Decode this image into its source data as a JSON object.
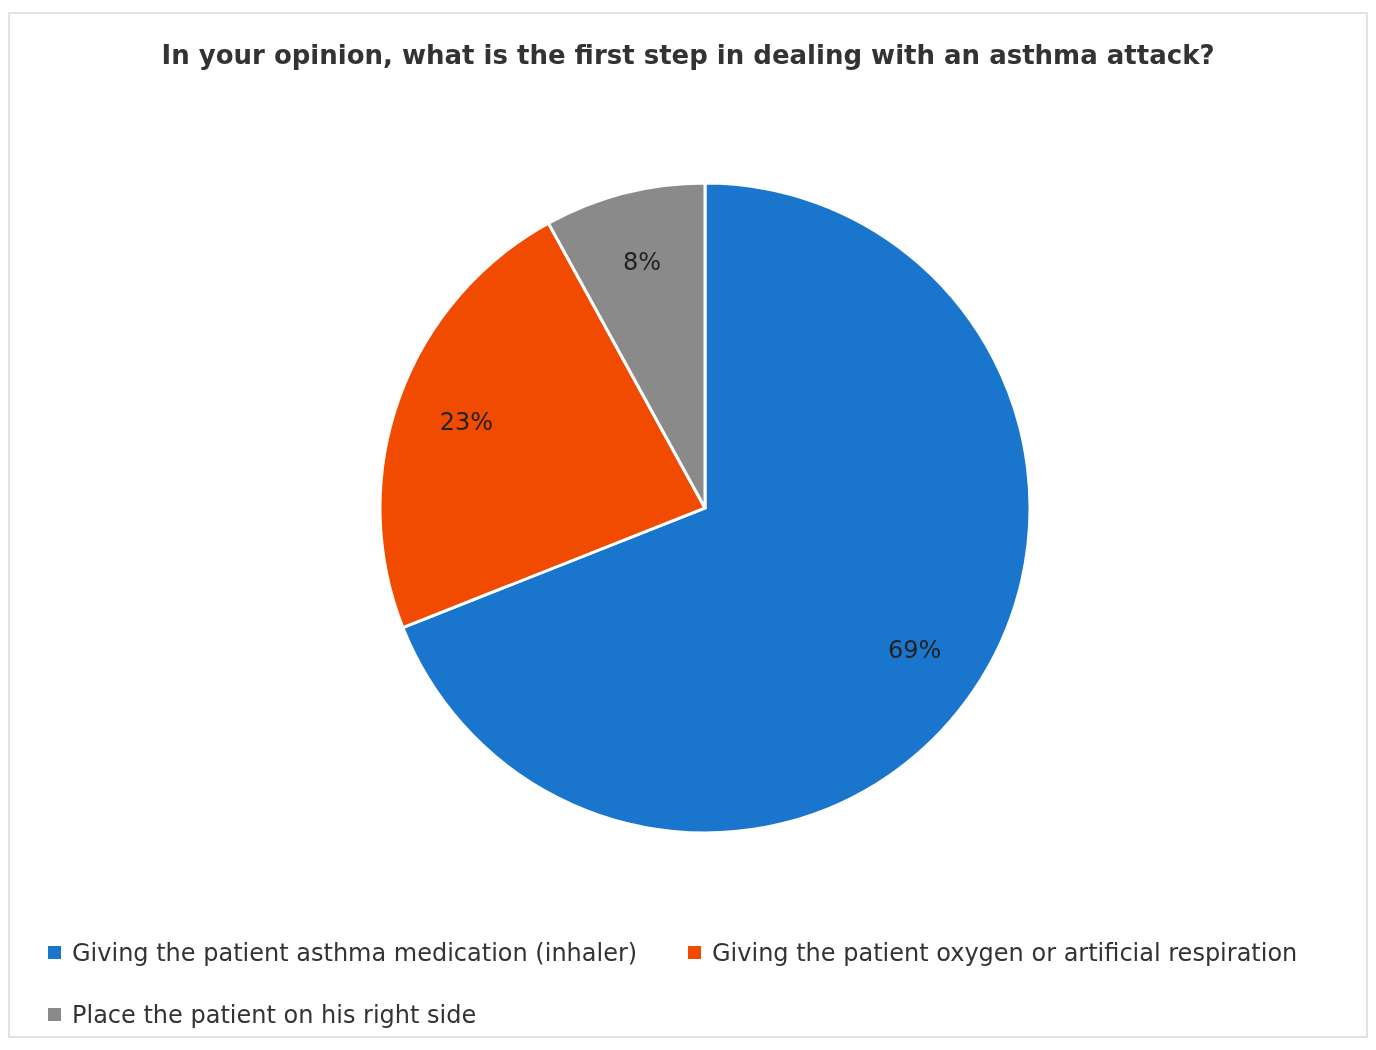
{
  "chart_data": {
    "type": "pie",
    "title": "In your opinion, what is the first step in dealing with an asthma attack?",
    "categories": [
      "Giving the patient asthma medication (inhaler)",
      "Giving the patient oxygen or artificial respiration",
      "Place the patient on his right side"
    ],
    "values": [
      69,
      23,
      8
    ],
    "colors": [
      "#1a75cc",
      "#f04b00",
      "#8a8a8a"
    ],
    "value_labels": [
      "69%",
      "23%",
      "8%"
    ],
    "legend": "bottom"
  }
}
